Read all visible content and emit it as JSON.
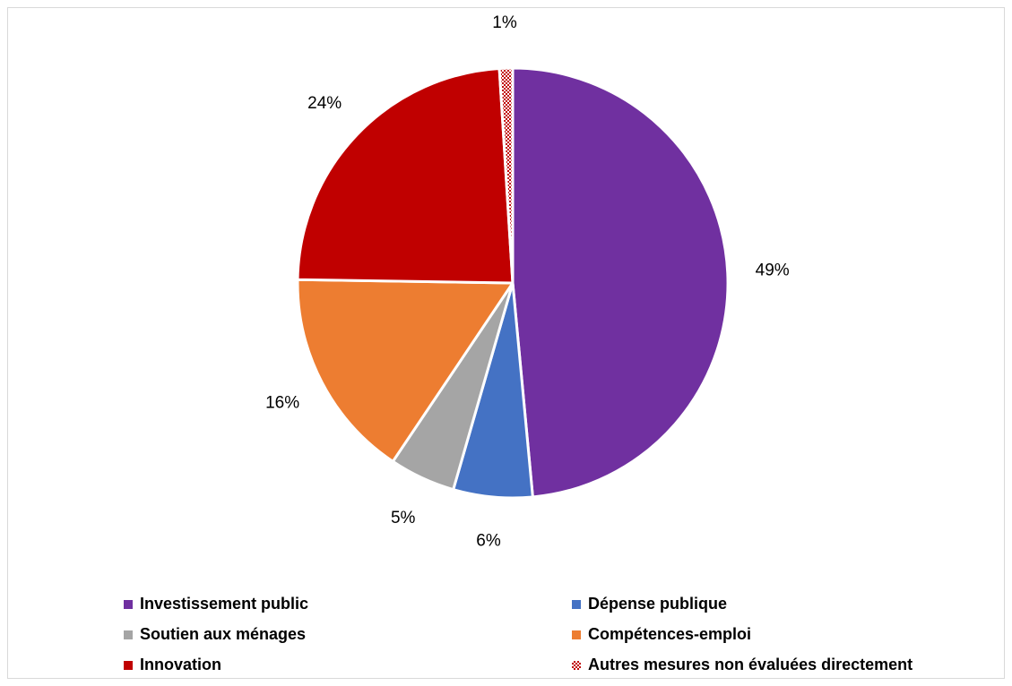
{
  "chart_data": {
    "type": "pie",
    "categories": [
      "Investissement public",
      "Dépense publique",
      "Soutien aux ménages",
      "Compétences-emploi",
      "Innovation",
      "Autres mesures non évaluées directement"
    ],
    "values": [
      49,
      6,
      5,
      16,
      24,
      1
    ],
    "labels": [
      "49%",
      "6%",
      "5%",
      "16%",
      "24%",
      "1%"
    ],
    "colors": [
      "#7030A0",
      "#4472C4",
      "#A5A5A5",
      "#ED7D31",
      "#C00000",
      "#C00000"
    ],
    "patterned": [
      false,
      false,
      false,
      false,
      false,
      true
    ],
    "start": "12 o'clock",
    "direction": "clockwise",
    "legend": {
      "position": "bottom",
      "items": [
        {
          "label": "Investissement public",
          "color": "#7030A0",
          "pattern": false
        },
        {
          "label": "Dépense publique",
          "color": "#4472C4",
          "pattern": false
        },
        {
          "label": "Soutien aux ménages",
          "color": "#A5A5A5",
          "pattern": false
        },
        {
          "label": "Compétences-emploi",
          "color": "#ED7D31",
          "pattern": false
        },
        {
          "label": "Innovation",
          "color": "#C00000",
          "pattern": false
        },
        {
          "label": "Autres mesures non évaluées directement",
          "color": "#C00000",
          "pattern": true
        }
      ]
    }
  }
}
